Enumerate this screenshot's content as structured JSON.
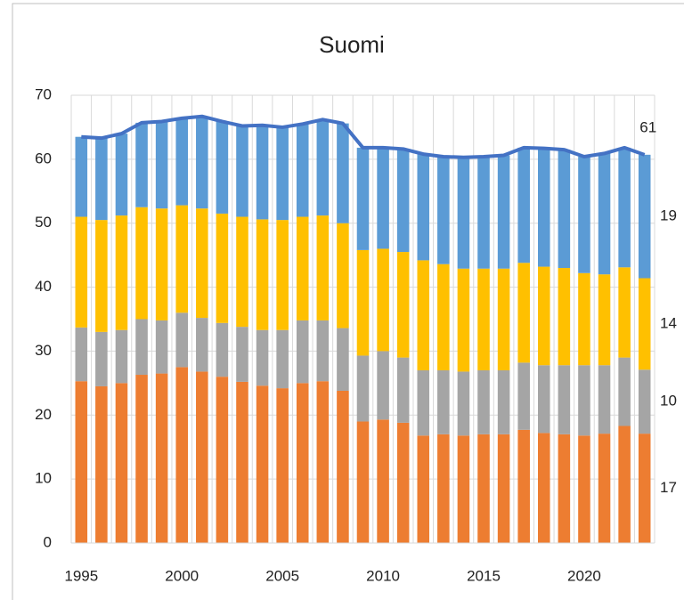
{
  "chart_data": {
    "type": "bar",
    "stacked": true,
    "title": "Suomi",
    "categories": [
      1995,
      1996,
      1997,
      1998,
      1999,
      2000,
      2001,
      2002,
      2003,
      2004,
      2005,
      2006,
      2007,
      2008,
      2009,
      2010,
      2011,
      2012,
      2013,
      2014,
      2015,
      2016,
      2017,
      2018,
      2019,
      2020,
      2021,
      2022,
      2023
    ],
    "xticks": [
      1995,
      2000,
      2005,
      2010,
      2015,
      2020
    ],
    "ylim": [
      0,
      70
    ],
    "yticks": [
      0,
      10,
      20,
      30,
      40,
      50,
      60,
      70
    ],
    "grid": true,
    "series": [
      {
        "type": "bar",
        "color": "#ED7D31",
        "values": [
          25.3,
          24.5,
          25,
          26.3,
          26.5,
          27.5,
          26.8,
          26,
          25.2,
          24.6,
          24.2,
          25,
          25.3,
          23.8,
          19,
          19.3,
          18.8,
          16.8,
          17,
          16.8,
          17,
          17,
          17.7,
          17.2,
          17,
          16.8,
          17.1,
          18.3,
          17.1
        ],
        "value_labels": [
          null,
          null,
          null,
          null,
          null,
          null,
          null,
          null,
          null,
          null,
          null,
          null,
          null,
          null,
          null,
          null,
          null,
          null,
          null,
          null,
          null,
          null,
          null,
          null,
          null,
          null,
          null,
          null,
          "17"
        ]
      },
      {
        "type": "bar",
        "color": "#A5A5A5",
        "values": [
          8.4,
          8.5,
          8.3,
          8.7,
          8.3,
          8.5,
          8.4,
          8.4,
          8.6,
          8.7,
          9.1,
          9.8,
          9.5,
          9.8,
          10.3,
          10.7,
          10.2,
          10.2,
          10,
          10,
          10,
          10,
          10.5,
          10.6,
          10.8,
          11,
          10.7,
          10.7,
          10
        ],
        "value_labels": [
          null,
          null,
          null,
          null,
          null,
          null,
          null,
          null,
          null,
          null,
          null,
          null,
          null,
          null,
          null,
          null,
          null,
          null,
          null,
          null,
          null,
          null,
          null,
          null,
          null,
          null,
          null,
          null,
          "10"
        ]
      },
      {
        "type": "bar",
        "color": "#FFC000",
        "values": [
          17.3,
          17.5,
          17.9,
          17.5,
          17.5,
          16.8,
          17.1,
          17.1,
          17.2,
          17.3,
          17.2,
          16.2,
          16.4,
          16.4,
          16.5,
          16,
          16.5,
          17.2,
          16.6,
          16.1,
          15.9,
          15.9,
          15.6,
          15.4,
          15.2,
          14.4,
          14.2,
          14.1,
          14.3
        ],
        "value_labels": [
          null,
          null,
          null,
          null,
          null,
          null,
          null,
          null,
          null,
          null,
          null,
          null,
          null,
          null,
          null,
          null,
          null,
          null,
          null,
          null,
          null,
          null,
          null,
          null,
          null,
          null,
          null,
          null,
          "14"
        ]
      },
      {
        "type": "bar",
        "color": "#5B9BD5",
        "values": [
          12.5,
          12.8,
          12.8,
          13.2,
          13.6,
          13.6,
          14.4,
          14.4,
          14.2,
          14.7,
          14.5,
          14.5,
          15,
          15.6,
          16,
          15.8,
          16.1,
          16.6,
          16.8,
          17.4,
          17.5,
          17.7,
          18,
          18.5,
          18.5,
          18.2,
          18.9,
          18.7,
          19.3
        ],
        "value_labels": [
          null,
          null,
          null,
          null,
          null,
          null,
          null,
          null,
          null,
          null,
          null,
          null,
          null,
          null,
          null,
          null,
          null,
          null,
          null,
          null,
          null,
          null,
          null,
          null,
          null,
          null,
          null,
          null,
          "19"
        ]
      },
      {
        "type": "line",
        "color": "#4472C4",
        "values": [
          63.5,
          63.3,
          64,
          65.7,
          65.9,
          66.4,
          66.7,
          65.9,
          65.2,
          65.3,
          65,
          65.5,
          66.2,
          65.6,
          61.8,
          61.8,
          61.6,
          60.8,
          60.4,
          60.3,
          60.4,
          60.6,
          61.8,
          61.7,
          61.5,
          60.4,
          60.9,
          61.8,
          60.7
        ],
        "value_labels": [
          null,
          null,
          null,
          null,
          null,
          null,
          null,
          null,
          null,
          null,
          null,
          null,
          null,
          null,
          null,
          null,
          null,
          null,
          null,
          null,
          null,
          null,
          null,
          null,
          null,
          null,
          null,
          null,
          "61"
        ]
      }
    ]
  }
}
